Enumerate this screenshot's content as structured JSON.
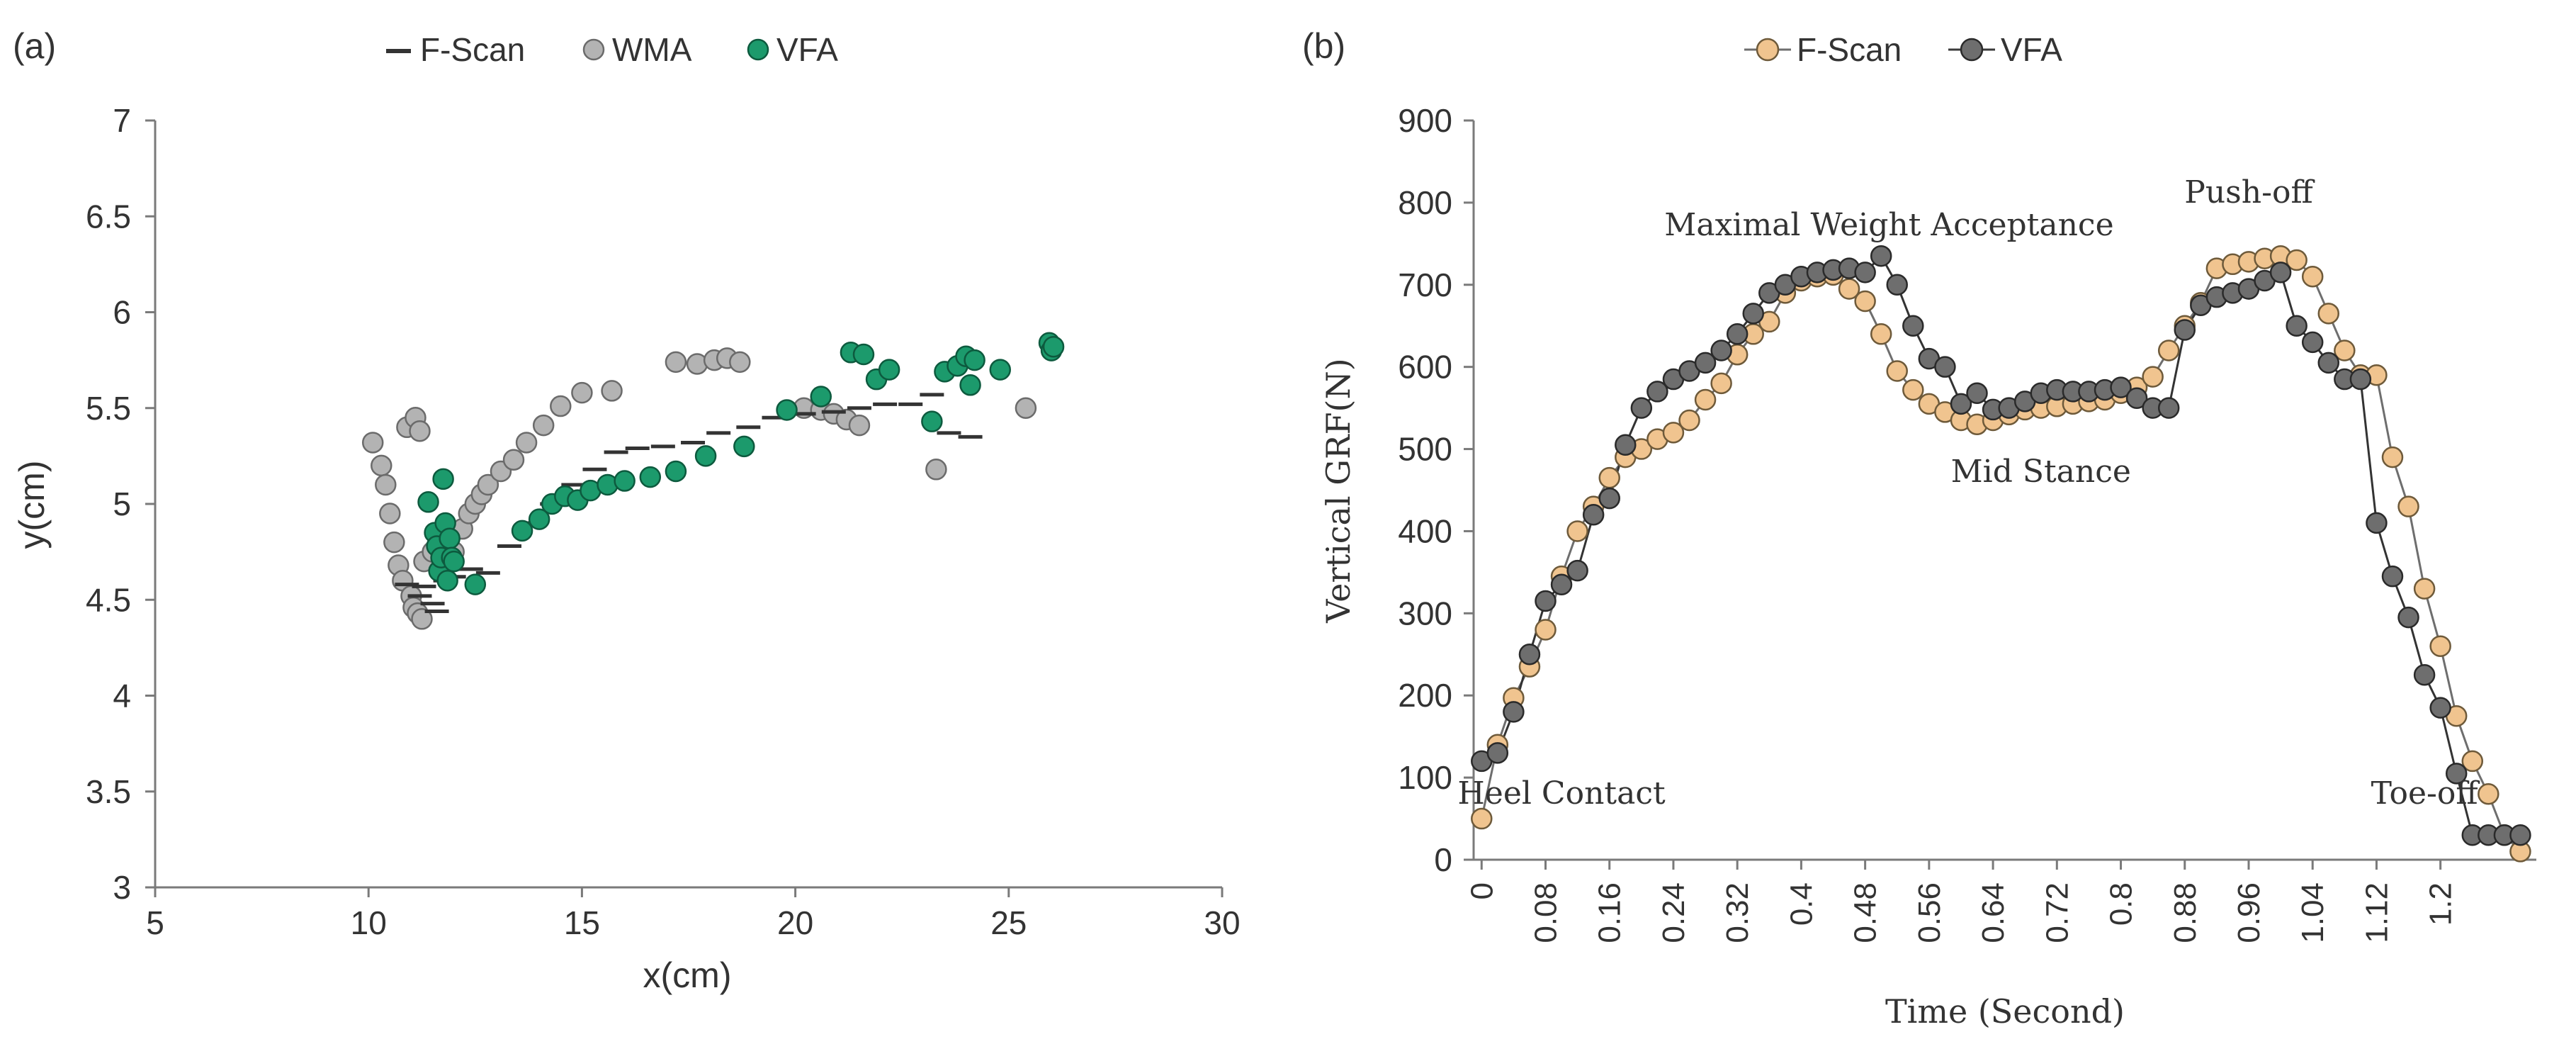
{
  "chart_data": [
    {
      "panel": "(a)",
      "type": "scatter",
      "title": "",
      "xlabel": "x(cm)",
      "ylabel": "y(cm)",
      "xlim": [
        5,
        30
      ],
      "ylim": [
        3,
        7
      ],
      "xticks": [
        "5",
        "10",
        "15",
        "20",
        "25",
        "30"
      ],
      "yticks": [
        "3",
        "3.5",
        "4",
        "4.5",
        "5",
        "5.5",
        "6",
        "6.5",
        "7"
      ],
      "legend": [
        "F-Scan",
        "WMA",
        "VFA"
      ],
      "legend_position": "top",
      "series": [
        {
          "name": "F-Scan",
          "marker": "dash",
          "color": "#333333",
          "points": [
            [
              10.9,
              4.58
            ],
            [
              11.2,
              4.52
            ],
            [
              11.3,
              4.57
            ],
            [
              11.5,
              4.48
            ],
            [
              11.6,
              4.44
            ],
            [
              11.8,
              4.6
            ],
            [
              12.0,
              4.62
            ],
            [
              12.4,
              4.66
            ],
            [
              12.8,
              4.64
            ],
            [
              13.3,
              4.78
            ],
            [
              13.8,
              4.9
            ],
            [
              14.3,
              5.0
            ],
            [
              14.8,
              5.1
            ],
            [
              15.3,
              5.18
            ],
            [
              15.8,
              5.27
            ],
            [
              16.3,
              5.29
            ],
            [
              16.9,
              5.3
            ],
            [
              17.6,
              5.32
            ],
            [
              18.2,
              5.37
            ],
            [
              18.9,
              5.4
            ],
            [
              19.5,
              5.45
            ],
            [
              20.2,
              5.47
            ],
            [
              20.9,
              5.48
            ],
            [
              21.5,
              5.5
            ],
            [
              22.1,
              5.52
            ],
            [
              22.7,
              5.52
            ],
            [
              23.2,
              5.57
            ],
            [
              23.6,
              5.37
            ],
            [
              24.1,
              5.35
            ]
          ]
        },
        {
          "name": "WMA",
          "marker": "circle",
          "color": "#b3b3b3",
          "points": [
            [
              10.1,
              5.32
            ],
            [
              10.3,
              5.2
            ],
            [
              10.4,
              5.1
            ],
            [
              10.5,
              4.95
            ],
            [
              10.6,
              4.8
            ],
            [
              10.7,
              4.68
            ],
            [
              10.8,
              4.6
            ],
            [
              10.9,
              5.4
            ],
            [
              11.0,
              4.52
            ],
            [
              11.05,
              4.46
            ],
            [
              11.1,
              5.45
            ],
            [
              11.15,
              4.43
            ],
            [
              11.2,
              5.38
            ],
            [
              11.25,
              4.4
            ],
            [
              11.3,
              4.7
            ],
            [
              11.5,
              4.75
            ],
            [
              11.7,
              4.65
            ],
            [
              12.0,
              4.75
            ],
            [
              12.2,
              4.87
            ],
            [
              12.35,
              4.95
            ],
            [
              12.5,
              5.0
            ],
            [
              12.65,
              5.05
            ],
            [
              12.8,
              5.1
            ],
            [
              13.1,
              5.17
            ],
            [
              13.4,
              5.23
            ],
            [
              13.7,
              5.32
            ],
            [
              14.1,
              5.41
            ],
            [
              14.5,
              5.51
            ],
            [
              15.0,
              5.58
            ],
            [
              15.7,
              5.59
            ],
            [
              17.2,
              5.74
            ],
            [
              17.7,
              5.73
            ],
            [
              18.1,
              5.75
            ],
            [
              18.4,
              5.76
            ],
            [
              18.7,
              5.74
            ],
            [
              20.2,
              5.5
            ],
            [
              20.6,
              5.49
            ],
            [
              20.9,
              5.47
            ],
            [
              21.2,
              5.44
            ],
            [
              21.5,
              5.41
            ],
            [
              23.3,
              5.18
            ],
            [
              25.4,
              5.5
            ]
          ]
        },
        {
          "name": "VFA",
          "marker": "circle",
          "color": "#1c9a6c",
          "points": [
            [
              11.4,
              5.01
            ],
            [
              11.55,
              4.85
            ],
            [
              11.6,
              4.78
            ],
            [
              11.65,
              4.65
            ],
            [
              11.7,
              4.72
            ],
            [
              11.75,
              5.13
            ],
            [
              11.8,
              4.9
            ],
            [
              11.85,
              4.6
            ],
            [
              11.9,
              4.82
            ],
            [
              11.95,
              4.72
            ],
            [
              12.0,
              4.7
            ],
            [
              12.5,
              4.58
            ],
            [
              13.6,
              4.86
            ],
            [
              14.0,
              4.92
            ],
            [
              14.3,
              5.0
            ],
            [
              14.6,
              5.04
            ],
            [
              14.9,
              5.02
            ],
            [
              15.2,
              5.07
            ],
            [
              15.6,
              5.1
            ],
            [
              16.0,
              5.12
            ],
            [
              16.6,
              5.14
            ],
            [
              17.2,
              5.17
            ],
            [
              17.9,
              5.25
            ],
            [
              18.8,
              5.3
            ],
            [
              19.8,
              5.49
            ],
            [
              20.6,
              5.56
            ],
            [
              21.3,
              5.79
            ],
            [
              21.6,
              5.78
            ],
            [
              21.9,
              5.65
            ],
            [
              22.2,
              5.7
            ],
            [
              23.2,
              5.43
            ],
            [
              23.5,
              5.69
            ],
            [
              23.8,
              5.72
            ],
            [
              24.0,
              5.77
            ],
            [
              24.2,
              5.75
            ],
            [
              24.1,
              5.62
            ],
            [
              24.8,
              5.7
            ],
            [
              25.95,
              5.84
            ],
            [
              26.0,
              5.8
            ],
            [
              26.05,
              5.82
            ]
          ]
        }
      ]
    },
    {
      "panel": "(b)",
      "type": "line",
      "title": "",
      "xlabel": "Time (Second)",
      "ylabel": "Vertical GRF(N)",
      "xlim": [
        -0.01,
        1.32
      ],
      "ylim": [
        0,
        900
      ],
      "xticks": [
        "0",
        "0.08",
        "0.16",
        "0.24",
        "0.32",
        "0.4",
        "0.48",
        "0.56",
        "0.64",
        "0.72",
        "0.8",
        "0.88",
        "0.96",
        "1.04",
        "1.12",
        "1.2"
      ],
      "yticks": [
        "0",
        "100",
        "200",
        "300",
        "400",
        "500",
        "600",
        "700",
        "800",
        "900"
      ],
      "legend": [
        "F-Scan",
        "VFA"
      ],
      "legend_position": "top",
      "annotations": [
        {
          "text": "Heel Contact",
          "x": 0.1,
          "y": 68
        },
        {
          "text": "Maximal Weight Acceptance",
          "x": 0.51,
          "y": 760
        },
        {
          "text": "Mid Stance",
          "x": 0.7,
          "y": 460
        },
        {
          "text": "Push-off",
          "x": 0.96,
          "y": 800
        },
        {
          "text": "Toe-off",
          "x": 1.18,
          "y": 68
        }
      ],
      "x": [
        0,
        0.02,
        0.04,
        0.06,
        0.08,
        0.1,
        0.12,
        0.14,
        0.16,
        0.18,
        0.2,
        0.22,
        0.24,
        0.26,
        0.28,
        0.3,
        0.32,
        0.34,
        0.36,
        0.38,
        0.4,
        0.42,
        0.44,
        0.46,
        0.48,
        0.5,
        0.52,
        0.54,
        0.56,
        0.58,
        0.6,
        0.62,
        0.64,
        0.66,
        0.68,
        0.7,
        0.72,
        0.74,
        0.76,
        0.78,
        0.8,
        0.82,
        0.84,
        0.86,
        0.88,
        0.9,
        0.92,
        0.94,
        0.96,
        0.98,
        1.0,
        1.02,
        1.04,
        1.06,
        1.08,
        1.1,
        1.12,
        1.14,
        1.16,
        1.18,
        1.2,
        1.22,
        1.24,
        1.26,
        1.28,
        1.3
      ],
      "series": [
        {
          "name": "F-Scan",
          "color": "#f0c48f",
          "values": [
            50,
            140,
            197,
            235,
            280,
            345,
            400,
            430,
            465,
            490,
            500,
            512,
            520,
            535,
            560,
            580,
            615,
            640,
            655,
            690,
            705,
            710,
            712,
            695,
            680,
            640,
            595,
            572,
            555,
            545,
            535,
            530,
            535,
            542,
            548,
            550,
            552,
            555,
            558,
            560,
            568,
            575,
            588,
            620,
            650,
            678,
            720,
            725,
            728,
            732,
            735,
            730,
            710,
            665,
            620,
            590,
            590,
            490,
            430,
            330,
            260,
            175,
            120,
            80,
            30,
            10
          ]
        },
        {
          "name": "VFA",
          "color": "#6e6e6e",
          "values": [
            120,
            130,
            180,
            250,
            315,
            335,
            352,
            420,
            440,
            505,
            550,
            570,
            585,
            595,
            605,
            620,
            640,
            665,
            690,
            700,
            710,
            715,
            718,
            720,
            715,
            735,
            700,
            650,
            610,
            600,
            555,
            568,
            548,
            550,
            558,
            568,
            572,
            570,
            570,
            572,
            575,
            562,
            550,
            550,
            645,
            675,
            685,
            690,
            695,
            705,
            715,
            650,
            630,
            605,
            585,
            585,
            410,
            345,
            295,
            225,
            185,
            105,
            30,
            30,
            30,
            30
          ]
        }
      ]
    }
  ]
}
